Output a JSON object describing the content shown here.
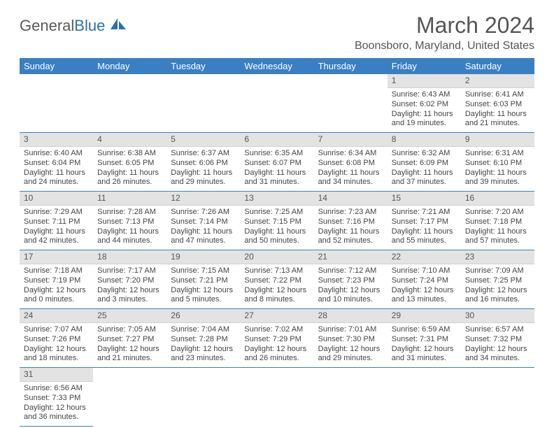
{
  "logo": {
    "text1": "General",
    "text2": "Blue"
  },
  "title": "March 2024",
  "location": "Boonsboro, Maryland, United States",
  "colors": {
    "header_bg": "#3a7fc4",
    "header_text": "#ffffff",
    "daynum_bg": "#e3e3e3",
    "row_border": "#3a7fc4",
    "logo_gray": "#5a5a5a",
    "logo_blue": "#2d6fb3"
  },
  "weekdays": [
    "Sunday",
    "Monday",
    "Tuesday",
    "Wednesday",
    "Thursday",
    "Friday",
    "Saturday"
  ],
  "first_day_index": 5,
  "days": [
    {
      "n": 1,
      "sr": "6:43 AM",
      "ss": "6:02 PM",
      "dl": "11 hours and 19 minutes."
    },
    {
      "n": 2,
      "sr": "6:41 AM",
      "ss": "6:03 PM",
      "dl": "11 hours and 21 minutes."
    },
    {
      "n": 3,
      "sr": "6:40 AM",
      "ss": "6:04 PM",
      "dl": "11 hours and 24 minutes."
    },
    {
      "n": 4,
      "sr": "6:38 AM",
      "ss": "6:05 PM",
      "dl": "11 hours and 26 minutes."
    },
    {
      "n": 5,
      "sr": "6:37 AM",
      "ss": "6:06 PM",
      "dl": "11 hours and 29 minutes."
    },
    {
      "n": 6,
      "sr": "6:35 AM",
      "ss": "6:07 PM",
      "dl": "11 hours and 31 minutes."
    },
    {
      "n": 7,
      "sr": "6:34 AM",
      "ss": "6:08 PM",
      "dl": "11 hours and 34 minutes."
    },
    {
      "n": 8,
      "sr": "6:32 AM",
      "ss": "6:09 PM",
      "dl": "11 hours and 37 minutes."
    },
    {
      "n": 9,
      "sr": "6:31 AM",
      "ss": "6:10 PM",
      "dl": "11 hours and 39 minutes."
    },
    {
      "n": 10,
      "sr": "7:29 AM",
      "ss": "7:11 PM",
      "dl": "11 hours and 42 minutes."
    },
    {
      "n": 11,
      "sr": "7:28 AM",
      "ss": "7:13 PM",
      "dl": "11 hours and 44 minutes."
    },
    {
      "n": 12,
      "sr": "7:26 AM",
      "ss": "7:14 PM",
      "dl": "11 hours and 47 minutes."
    },
    {
      "n": 13,
      "sr": "7:25 AM",
      "ss": "7:15 PM",
      "dl": "11 hours and 50 minutes."
    },
    {
      "n": 14,
      "sr": "7:23 AM",
      "ss": "7:16 PM",
      "dl": "11 hours and 52 minutes."
    },
    {
      "n": 15,
      "sr": "7:21 AM",
      "ss": "7:17 PM",
      "dl": "11 hours and 55 minutes."
    },
    {
      "n": 16,
      "sr": "7:20 AM",
      "ss": "7:18 PM",
      "dl": "11 hours and 57 minutes."
    },
    {
      "n": 17,
      "sr": "7:18 AM",
      "ss": "7:19 PM",
      "dl": "12 hours and 0 minutes."
    },
    {
      "n": 18,
      "sr": "7:17 AM",
      "ss": "7:20 PM",
      "dl": "12 hours and 3 minutes."
    },
    {
      "n": 19,
      "sr": "7:15 AM",
      "ss": "7:21 PM",
      "dl": "12 hours and 5 minutes."
    },
    {
      "n": 20,
      "sr": "7:13 AM",
      "ss": "7:22 PM",
      "dl": "12 hours and 8 minutes."
    },
    {
      "n": 21,
      "sr": "7:12 AM",
      "ss": "7:23 PM",
      "dl": "12 hours and 10 minutes."
    },
    {
      "n": 22,
      "sr": "7:10 AM",
      "ss": "7:24 PM",
      "dl": "12 hours and 13 minutes."
    },
    {
      "n": 23,
      "sr": "7:09 AM",
      "ss": "7:25 PM",
      "dl": "12 hours and 16 minutes."
    },
    {
      "n": 24,
      "sr": "7:07 AM",
      "ss": "7:26 PM",
      "dl": "12 hours and 18 minutes."
    },
    {
      "n": 25,
      "sr": "7:05 AM",
      "ss": "7:27 PM",
      "dl": "12 hours and 21 minutes."
    },
    {
      "n": 26,
      "sr": "7:04 AM",
      "ss": "7:28 PM",
      "dl": "12 hours and 23 minutes."
    },
    {
      "n": 27,
      "sr": "7:02 AM",
      "ss": "7:29 PM",
      "dl": "12 hours and 26 minutes."
    },
    {
      "n": 28,
      "sr": "7:01 AM",
      "ss": "7:30 PM",
      "dl": "12 hours and 29 minutes."
    },
    {
      "n": 29,
      "sr": "6:59 AM",
      "ss": "7:31 PM",
      "dl": "12 hours and 31 minutes."
    },
    {
      "n": 30,
      "sr": "6:57 AM",
      "ss": "7:32 PM",
      "dl": "12 hours and 34 minutes."
    },
    {
      "n": 31,
      "sr": "6:56 AM",
      "ss": "7:33 PM",
      "dl": "12 hours and 36 minutes."
    }
  ],
  "labels": {
    "sunrise": "Sunrise:",
    "sunset": "Sunset:",
    "daylight": "Daylight:"
  }
}
